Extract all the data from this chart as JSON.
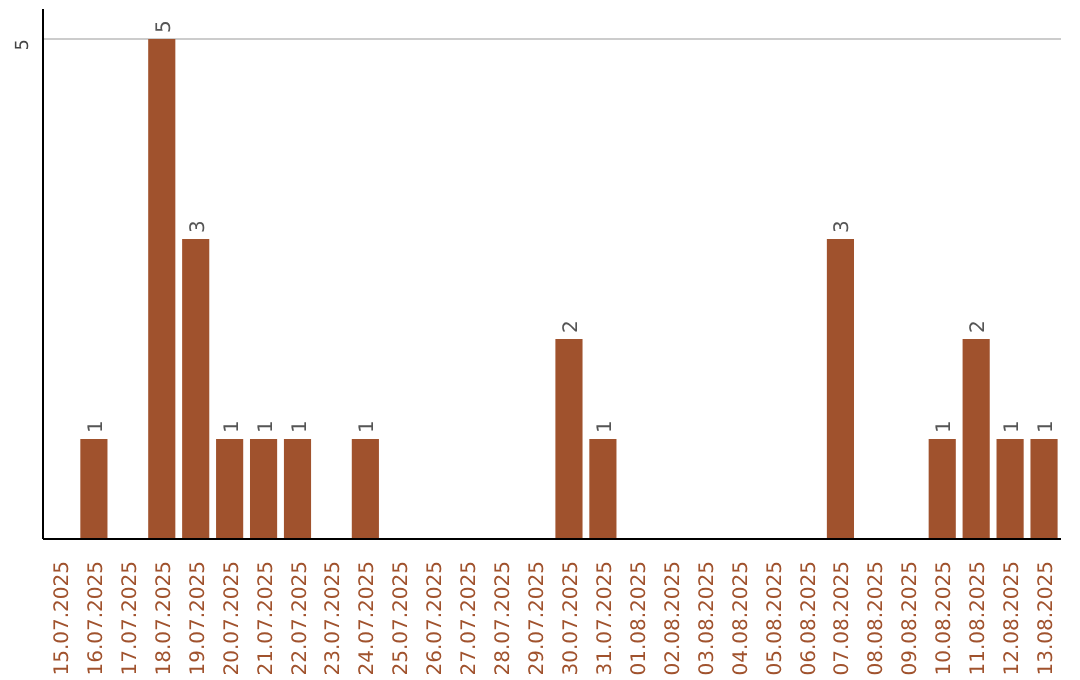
{
  "chart_data": {
    "type": "bar",
    "categories": [
      "15.07.2025",
      "16.07.2025",
      "17.07.2025",
      "18.07.2025",
      "19.07.2025",
      "20.07.2025",
      "21.07.2025",
      "22.07.2025",
      "23.07.2025",
      "24.07.2025",
      "25.07.2025",
      "26.07.2025",
      "27.07.2025",
      "28.07.2025",
      "29.07.2025",
      "30.07.2025",
      "31.07.2025",
      "01.08.2025",
      "02.08.2025",
      "03.08.2025",
      "04.08.2025",
      "05.08.2025",
      "06.08.2025",
      "07.08.2025",
      "08.08.2025",
      "09.08.2025",
      "10.08.2025",
      "11.08.2025",
      "12.08.2025",
      "13.08.2025"
    ],
    "values": [
      0,
      1,
      0,
      5,
      3,
      1,
      1,
      1,
      0,
      1,
      0,
      0,
      0,
      0,
      0,
      2,
      1,
      0,
      0,
      0,
      0,
      0,
      0,
      3,
      0,
      0,
      1,
      2,
      1,
      1
    ],
    "value_labels": [
      null,
      "1",
      null,
      "5",
      "3",
      "1",
      "1",
      "1",
      null,
      "1",
      null,
      null,
      null,
      null,
      null,
      "2",
      "1",
      null,
      null,
      null,
      null,
      null,
      null,
      "3",
      null,
      null,
      "1",
      "2",
      "1",
      "1"
    ],
    "color": "#a0522d",
    "ylim": [
      0,
      5.3
    ],
    "yticks": [
      5
    ],
    "grid": "y"
  }
}
